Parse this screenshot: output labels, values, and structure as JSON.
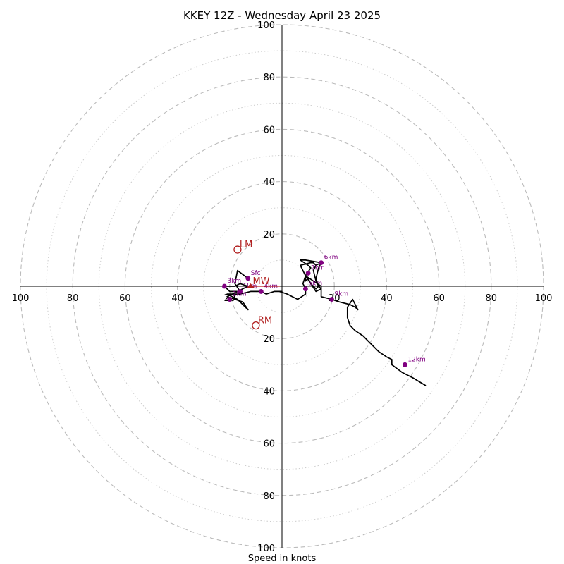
{
  "chart_data": {
    "type": "hodograph",
    "title": "KKEY 12Z - Wednesday April 23 2025",
    "xlabel": "Speed in knots",
    "range": 100,
    "rings_major": [
      20,
      40,
      60,
      80,
      100
    ],
    "rings_minor": [
      10,
      30,
      50,
      70,
      90
    ],
    "tick_labels": [
      "20",
      "40",
      "60",
      "80",
      "100"
    ],
    "colors": {
      "trace": "#000000",
      "height_markers": "#800080",
      "storm_motion": "#b22222",
      "grid": "#bbbbbb"
    },
    "hodograph_trace": [
      [
        -13,
        3
      ],
      [
        -17,
        6
      ],
      [
        -18,
        1
      ],
      [
        -16,
        -2
      ],
      [
        -20,
        -2
      ],
      [
        -22,
        0
      ],
      [
        -18,
        0
      ],
      [
        -16,
        1
      ],
      [
        -13,
        0
      ],
      [
        -17,
        -2
      ],
      [
        -21,
        -4
      ],
      [
        -15,
        -6
      ],
      [
        -13,
        -9
      ],
      [
        -17,
        -5
      ],
      [
        -21,
        -3
      ],
      [
        -16,
        -3
      ],
      [
        -12,
        -2
      ],
      [
        -8,
        -2
      ],
      [
        -6,
        -3
      ],
      [
        -3,
        -2
      ],
      [
        -1,
        -2
      ],
      [
        0,
        -2
      ],
      [
        -1,
        -2
      ],
      [
        2,
        -3
      ],
      [
        6,
        -5
      ],
      [
        9,
        -3
      ],
      [
        9,
        -1
      ],
      [
        8,
        1
      ],
      [
        9,
        4
      ],
      [
        7,
        8
      ],
      [
        11,
        9
      ],
      [
        12,
        9
      ],
      [
        13,
        8
      ],
      [
        15,
        9
      ],
      [
        13,
        8
      ],
      [
        12,
        6
      ],
      [
        13,
        2
      ],
      [
        14,
        0
      ],
      [
        13,
        -1
      ],
      [
        11,
        1
      ],
      [
        10,
        3
      ],
      [
        9,
        2
      ],
      [
        9,
        4
      ],
      [
        11,
        7
      ],
      [
        10,
        8
      ],
      [
        7,
        10
      ],
      [
        9,
        10
      ],
      [
        15,
        9
      ],
      [
        14,
        7
      ],
      [
        13,
        3
      ],
      [
        14,
        0
      ],
      [
        15,
        -1
      ],
      [
        13,
        -2
      ],
      [
        11,
        1
      ],
      [
        9,
        4
      ],
      [
        12,
        2
      ],
      [
        15,
        0
      ],
      [
        15,
        -4
      ],
      [
        19,
        -5
      ],
      [
        22,
        -6
      ],
      [
        26,
        -7
      ],
      [
        28,
        -8
      ],
      [
        29,
        -9
      ],
      [
        27,
        -5
      ],
      [
        25,
        -8
      ],
      [
        25,
        -12
      ],
      [
        26,
        -15
      ],
      [
        28,
        -17
      ],
      [
        31,
        -19
      ],
      [
        34,
        -22
      ],
      [
        37,
        -25
      ],
      [
        40,
        -27
      ],
      [
        42,
        -28
      ],
      [
        42,
        -30
      ],
      [
        46,
        -33
      ],
      [
        50,
        -35
      ],
      [
        55,
        -38
      ]
    ],
    "height_markers": [
      {
        "label": "Sfc",
        "u": -13,
        "v": 3
      },
      {
        "label": "1km",
        "u": -16,
        "v": -2
      },
      {
        "label": "2km",
        "u": -20,
        "v": -5
      },
      {
        "label": "3km",
        "u": -22,
        "v": 0
      },
      {
        "label": "4km",
        "u": -8,
        "v": -2
      },
      {
        "label": "5km",
        "u": 9,
        "v": -1
      },
      {
        "label": "6km",
        "u": 15,
        "v": 9
      },
      {
        "label": "7km",
        "u": 10,
        "v": 5
      },
      {
        "label": "9km",
        "u": 19,
        "v": -5
      },
      {
        "label": "12km",
        "u": 47,
        "v": -30
      }
    ],
    "storm_motion": [
      {
        "label": "LM",
        "u": -17,
        "v": 14
      },
      {
        "label": "RM",
        "u": -10,
        "v": -15
      },
      {
        "label": "MW",
        "u": -12,
        "v": 0
      }
    ]
  }
}
